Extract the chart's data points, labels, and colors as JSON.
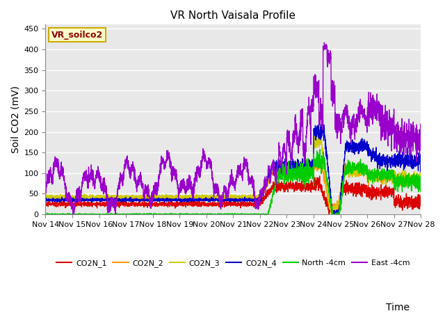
{
  "title": "VR North Vaisala Profile",
  "ylabel": "Soil CO2 (mV)",
  "xlabel": "Time",
  "annotation": "VR_soilco2",
  "ylim": [
    0,
    460
  ],
  "yticks": [
    0,
    50,
    100,
    150,
    200,
    250,
    300,
    350,
    400,
    450
  ],
  "n_days": 14,
  "series_colors": {
    "CO2N_1": "#dd0000",
    "CO2N_2": "#ff9900",
    "CO2N_3": "#cccc00",
    "CO2N_4": "#0000cc",
    "North_4cm": "#00cc00",
    "East_4cm": "#9900cc"
  },
  "legend_labels": [
    "CO2N_1",
    "CO2N_2",
    "CO2N_3",
    "CO2N_4",
    "North -4cm",
    "East -4cm"
  ],
  "fig_bg_color": "#ffffff",
  "plot_bg_color": "#e8e8e8",
  "grid_color": "#ffffff",
  "title_fontsize": 11,
  "axis_label_fontsize": 10,
  "tick_fontsize": 8,
  "linewidth": 1.0
}
